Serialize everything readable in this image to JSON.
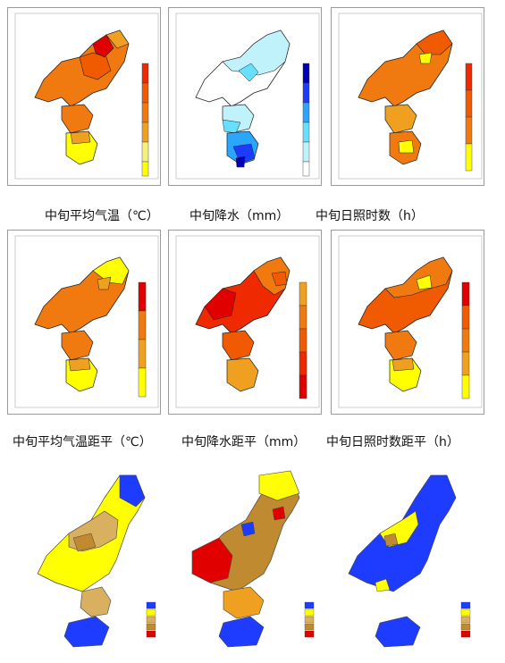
{
  "row1": {
    "captions": [
      "中旬平均气温（℃）",
      "中旬降水（mm）",
      "中旬日照时数（h）"
    ]
  },
  "row2": {
    "captions": [
      "中旬平均气温距平（℃）",
      "中旬降水距平（mm）",
      "中旬日照时数距平（h）"
    ]
  },
  "colors": {
    "deep_red": "#e00000",
    "red": "#f02a00",
    "orange_red": "#f05a00",
    "orange": "#f07a10",
    "amber": "#f0a020",
    "yellow": "#ffff00",
    "light_yellow": "#f6f07a",
    "white": "#ffffff",
    "pale_cyan": "#bff2fb",
    "cyan": "#66e0ff",
    "sky_blue": "#2aa6ff",
    "blue": "#1e3cff",
    "navy": "#0000b8",
    "brown": "#c08a30",
    "tan": "#d8b060",
    "border": "#222222"
  },
  "maps": [
    {
      "id": "temp",
      "row": 1,
      "legend": [
        "yellow",
        "light_yellow",
        "amber",
        "orange",
        "orange_red",
        "red"
      ]
    },
    {
      "id": "precip",
      "row": 1,
      "legend": [
        "white",
        "pale_cyan",
        "cyan",
        "sky_blue",
        "blue",
        "navy"
      ]
    },
    {
      "id": "sun",
      "row": 1,
      "legend": [
        "yellow",
        "amber",
        "orange",
        "orange_red",
        "red"
      ]
    },
    {
      "id": "temp_anom",
      "row": 2,
      "legend": [
        "yellow",
        "amber",
        "orange",
        "red"
      ]
    },
    {
      "id": "precip_anom",
      "row": 2,
      "legend": [
        "red",
        "orange_red",
        "orange",
        "amber",
        "yellow"
      ]
    },
    {
      "id": "sun_anom",
      "row": 2,
      "legend": [
        "red",
        "orange_red",
        "orange",
        "amber",
        "yellow"
      ]
    },
    {
      "id": "drought_1",
      "row": 3,
      "legend": [
        "blue",
        "yellow",
        "tan",
        "brown",
        "red"
      ]
    },
    {
      "id": "drought_2",
      "row": 3,
      "legend": [
        "blue",
        "yellow",
        "tan",
        "brown",
        "red"
      ]
    },
    {
      "id": "drought_3",
      "row": 3,
      "legend": [
        "blue",
        "yellow",
        "tan",
        "brown",
        "red"
      ]
    }
  ]
}
